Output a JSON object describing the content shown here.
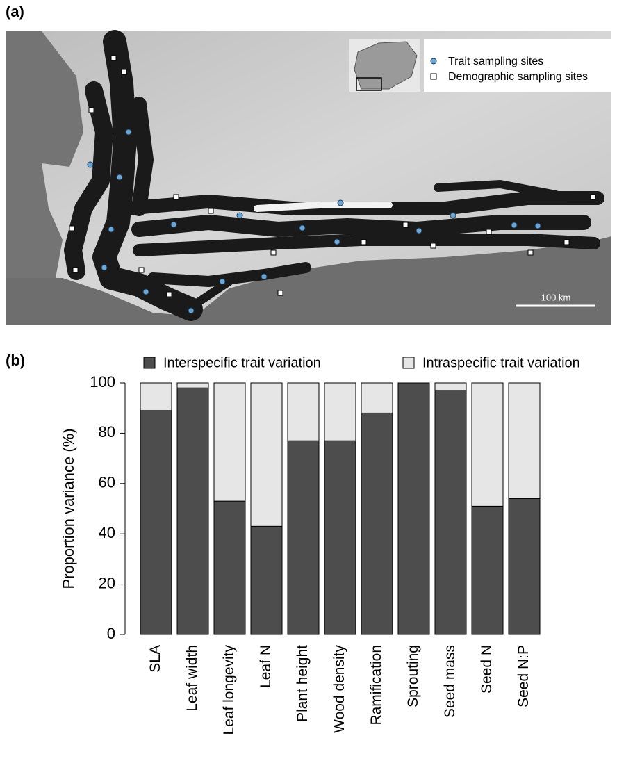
{
  "map": {
    "panel_label": "(a)",
    "legend": [
      "Trait sampling sites",
      "Demographic sampling sites"
    ],
    "scale_label": "100 km"
  },
  "chart_data": {
    "type": "stacked_bar",
    "panel_label": "(b)",
    "y_label": "Proportion variance (%)",
    "categories": [
      "SLA",
      "Leaf width",
      "Leaf longevity",
      "Leaf N",
      "Plant height",
      "Wood density",
      "Ramification",
      "Sprouting",
      "Seed mass",
      "Seed N",
      "Seed N:P"
    ],
    "series": [
      {
        "name": "Interspecific trait variation",
        "color": "#4d4d4d",
        "values": [
          89,
          98,
          53,
          43,
          77,
          77,
          88,
          100,
          97,
          51,
          54
        ]
      },
      {
        "name": "Intraspecific trait variation",
        "color": "#e6e6e6",
        "values": [
          11,
          2,
          47,
          57,
          23,
          23,
          12,
          0,
          3,
          49,
          46
        ]
      }
    ],
    "ylim": [
      0,
      100
    ],
    "yticks": [
      0,
      20,
      40,
      60,
      80,
      100
    ]
  }
}
